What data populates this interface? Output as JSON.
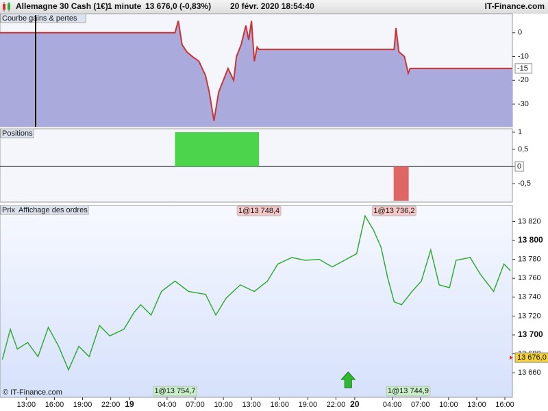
{
  "header": {
    "instrument": "Allemagne 30 Cash (1€)",
    "timeframe": "1 minute",
    "quote": "13 676,0 (-0,83%)",
    "datetime": "20 févr. 2020 18:54:40",
    "brand": "IT-Finance.com"
  },
  "footer": {
    "copyright": "© IT-Finance.com"
  },
  "chart_data": [
    {
      "type": "area",
      "title": "Courbe gains & pertes",
      "x": [
        10.2,
        28.85,
        29.2,
        29.6,
        30.1,
        30.7,
        31.4,
        32.1,
        32.5,
        33.0,
        33.5,
        34.0,
        34.5,
        35.1,
        35.4,
        35.9,
        36.4,
        36.7,
        37.0,
        37.3,
        37.6,
        37.8,
        52.2,
        52.4,
        52.7,
        53.3,
        53.7,
        53.9,
        64.8
      ],
      "values": [
        0,
        0,
        5,
        -5,
        -8,
        -10,
        -12,
        -18,
        -25,
        -37,
        -25,
        -20,
        -15,
        -20,
        -10,
        -5,
        3,
        -3,
        5,
        -12,
        -6,
        -7,
        -7,
        2,
        -8,
        -10,
        -17,
        -15,
        -15
      ],
      "color": "#aaaadc",
      "line_color": "#cc3333",
      "xlim": [
        10.2,
        64.8
      ],
      "ylim": [
        -39.5,
        8
      ],
      "yticks": [
        -30,
        -20,
        -10,
        0
      ],
      "last_value": -15
    },
    {
      "type": "bar",
      "title": "Positions",
      "x0": [
        28.85,
        52.15
      ],
      "x1": [
        37.8,
        53.75
      ],
      "values": [
        1,
        -1
      ],
      "colors": [
        "#4cd44c",
        "#e06666"
      ],
      "xlim": [
        10.2,
        64.8
      ],
      "ylim": [
        -1.04,
        1.1
      ],
      "yticks": [
        {
          "value": -0.5,
          "label": "-0,5"
        },
        0,
        {
          "value": 0.5,
          "label": "0,5"
        },
        1
      ],
      "last_value": 0
    },
    {
      "type": "line",
      "title": "Prix",
      "subtitle": "Affichage des ordres",
      "x": [
        10.45,
        11.3,
        12.05,
        13.15,
        14.25,
        15.35,
        16.45,
        17.5,
        18.6,
        19.7,
        20.8,
        21.9,
        23.4,
        24.5,
        25.2,
        26.3,
        27.4,
        28.85,
        30.3,
        32.1,
        33.2,
        34.3,
        35.8,
        37.3,
        38.7,
        39.8,
        41.3,
        42.7,
        44.2,
        45.6,
        47.1,
        48.2,
        49.1,
        50.0,
        50.8,
        51.5,
        52.2,
        53.0,
        54.1,
        55.1,
        56.1,
        57.0,
        58.1,
        58.8,
        60.3,
        61.4,
        62.8,
        63.9,
        64.6
      ],
      "values": [
        13674,
        13706,
        13685,
        13692,
        13677,
        13708,
        13688,
        13663,
        13688,
        13677,
        13710,
        13699,
        13706,
        13724,
        13732,
        13721,
        13746,
        13757,
        13746,
        13743,
        13721,
        13739,
        13753,
        13746,
        13757,
        13775,
        13782,
        13779,
        13780,
        13772,
        13780,
        13786,
        13826,
        13811,
        13793,
        13761,
        13735,
        13732,
        13746,
        13757,
        13790,
        13753,
        13750,
        13779,
        13782,
        13764,
        13746,
        13775,
        13768
      ],
      "color": "#33aa33",
      "xlim": [
        10.2,
        64.8
      ],
      "ylim": [
        13634,
        13837
      ],
      "yticks": [
        {
          "value": 13660,
          "label": "13 660"
        },
        {
          "value": 13680,
          "label": "13 680"
        },
        {
          "value": 13700,
          "label": "13 700"
        },
        {
          "value": 13720,
          "label": "13 720"
        },
        {
          "value": 13740,
          "label": "13 740"
        },
        {
          "value": 13760,
          "label": "13 760"
        },
        {
          "value": 13780,
          "label": "13 780"
        },
        {
          "value": 13800,
          "label": "13 800"
        },
        {
          "value": 13820,
          "label": "13 820"
        }
      ],
      "xticks": [
        {
          "value": 13,
          "label": "13:00"
        },
        {
          "value": 16,
          "label": "16:00"
        },
        {
          "value": 19,
          "label": "19:00"
        },
        {
          "value": 22,
          "label": "22:00"
        },
        {
          "value": 24,
          "label": "19"
        },
        {
          "value": 28,
          "label": "04:00"
        },
        {
          "value": 31,
          "label": "07:00"
        },
        {
          "value": 34,
          "label": "10:00"
        },
        {
          "value": 37,
          "label": "13:00"
        },
        {
          "value": 40,
          "label": "16:00"
        },
        {
          "value": 43,
          "label": "19:00"
        },
        {
          "value": 46,
          "label": "22:00"
        },
        {
          "value": 48,
          "label": "20"
        },
        {
          "value": 52,
          "label": "04:00"
        },
        {
          "value": 55,
          "label": "07:00"
        },
        {
          "value": 58,
          "label": "10:00"
        },
        {
          "value": 61,
          "label": "13:00"
        },
        {
          "value": 64,
          "label": "16:00"
        }
      ],
      "last_value": {
        "value": 13676,
        "label": "13 676,0"
      },
      "annotations": [
        {
          "x": 37.8,
          "text": "1@13 748,4",
          "color": "#f5c6c6"
        },
        {
          "x": 52.2,
          "text": "1@13 736,2",
          "color": "#f5c6c6"
        },
        {
          "x": 28.85,
          "text": "1@13 754,7",
          "color": "#c9efc9"
        },
        {
          "x": 53.7,
          "text": "1@13 744,9",
          "color": "#c9efc9"
        }
      ],
      "arrows": [
        {
          "x": 47.3,
          "color": "#2fb82f"
        }
      ]
    }
  ]
}
